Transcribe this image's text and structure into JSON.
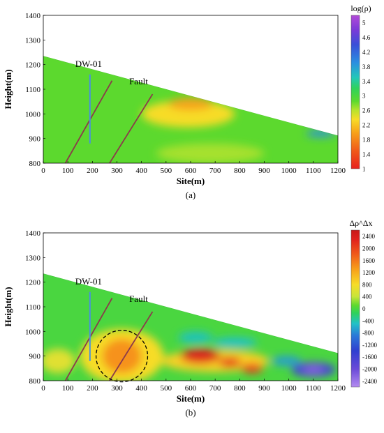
{
  "chart_data": [
    {
      "type": "heatmap",
      "panel_label": "(a)",
      "xlabel": "Site(m)",
      "ylabel": "Height(m)",
      "xlim": [
        0,
        1200
      ],
      "ylim": [
        800,
        1400
      ],
      "x_ticks": [
        0,
        100,
        200,
        300,
        400,
        500,
        600,
        700,
        800,
        900,
        1000,
        1100,
        1200
      ],
      "y_ticks": [
        800,
        900,
        1000,
        1100,
        1200,
        1300,
        1400
      ],
      "colorbar": {
        "title": "log(ρ)",
        "ticks": [
          "5",
          "4.6",
          "4.2",
          "3.8",
          "3.4",
          "3",
          "2.6",
          "2.2",
          "1.8",
          "1.4",
          "1"
        ],
        "range": [
          1,
          5.2
        ],
        "stops": [
          {
            "v": 1.0,
            "c": "#e8201c"
          },
          {
            "v": 1.5,
            "c": "#f05a1a"
          },
          {
            "v": 2.0,
            "c": "#f7a31a"
          },
          {
            "v": 2.35,
            "c": "#f7dc28"
          },
          {
            "v": 2.6,
            "c": "#b8e32d"
          },
          {
            "v": 2.85,
            "c": "#5cd92e"
          },
          {
            "v": 3.2,
            "c": "#2fd25b"
          },
          {
            "v": 3.5,
            "c": "#22c7b9"
          },
          {
            "v": 3.9,
            "c": "#2a8fe0"
          },
          {
            "v": 4.4,
            "c": "#3a4fd8"
          },
          {
            "v": 4.8,
            "c": "#7a3ad8"
          },
          {
            "v": 5.2,
            "c": "#b24ad8"
          }
        ]
      },
      "surface": [
        [
          0,
          1235
        ],
        [
          1200,
          912
        ]
      ],
      "background_value": 2.85,
      "anomalies": [
        {
          "x": 590,
          "y": 1000,
          "rx": 190,
          "ry": 55,
          "v": 2.35
        },
        {
          "x": 600,
          "y": 1040,
          "rx": 90,
          "ry": 25,
          "v": 2.0
        },
        {
          "x": 1130,
          "y": 920,
          "rx": 60,
          "ry": 14,
          "v": 3.9
        },
        {
          "x": 680,
          "y": 840,
          "rx": 220,
          "ry": 40,
          "v": 2.65
        }
      ],
      "annotations": [
        {
          "text": "DW-01",
          "x": 130,
          "y": 1190
        },
        {
          "text": "Fault",
          "x": 350,
          "y": 1120
        }
      ],
      "borehole": {
        "x": 190,
        "y_top": 1160,
        "y_bottom": 880,
        "color": "#4a8fe0"
      },
      "fault_lines": [
        {
          "x1": 90,
          "y1": 800,
          "x2": 280,
          "y2": 1135
        },
        {
          "x1": 270,
          "y1": 800,
          "x2": 445,
          "y2": 1080
        }
      ]
    },
    {
      "type": "heatmap",
      "panel_label": "(b)",
      "xlabel": "Site(m)",
      "ylabel": "Height(m)",
      "xlim": [
        0,
        1200
      ],
      "ylim": [
        800,
        1400
      ],
      "x_ticks": [
        0,
        100,
        200,
        300,
        400,
        500,
        600,
        700,
        800,
        900,
        1000,
        1100,
        1200
      ],
      "y_ticks": [
        800,
        900,
        1000,
        1100,
        1200,
        1300,
        1400
      ],
      "colorbar": {
        "title": "Δρ^Δx",
        "ticks": [
          "2400",
          "2000",
          "1600",
          "1200",
          "800",
          "400",
          "0",
          "-400",
          "-800",
          "-1200",
          "-1600",
          "-2000",
          "-2400"
        ],
        "range": [
          -2600,
          2600
        ],
        "stops": [
          {
            "v": -2600,
            "c": "#b48cf0"
          },
          {
            "v": -2000,
            "c": "#6a4ad8"
          },
          {
            "v": -1400,
            "c": "#2f3fd0"
          },
          {
            "v": -900,
            "c": "#2a78d8"
          },
          {
            "v": -500,
            "c": "#22c1c8"
          },
          {
            "v": -150,
            "c": "#2fd25b"
          },
          {
            "v": 100,
            "c": "#5cd92e"
          },
          {
            "v": 400,
            "c": "#c8e43a"
          },
          {
            "v": 800,
            "c": "#f7dc28"
          },
          {
            "v": 1300,
            "c": "#f7a01a"
          },
          {
            "v": 1800,
            "c": "#f05a1a"
          },
          {
            "v": 2300,
            "c": "#e0201c"
          },
          {
            "v": 2600,
            "c": "#c81818"
          }
        ]
      },
      "surface": [
        [
          0,
          1235
        ],
        [
          1200,
          912
        ]
      ],
      "background_value": 0,
      "anomalies": [
        {
          "x": 320,
          "y": 900,
          "rx": 170,
          "ry": 110,
          "v": 800
        },
        {
          "x": 320,
          "y": 900,
          "rx": 80,
          "ry": 70,
          "v": 1400
        },
        {
          "x": 60,
          "y": 880,
          "rx": 70,
          "ry": 50,
          "v": 600
        },
        {
          "x": 700,
          "y": 880,
          "rx": 220,
          "ry": 45,
          "v": 900
        },
        {
          "x": 640,
          "y": 900,
          "rx": 80,
          "ry": 30,
          "v": 2300
        },
        {
          "x": 760,
          "y": 875,
          "rx": 45,
          "ry": 20,
          "v": 2100
        },
        {
          "x": 850,
          "y": 850,
          "rx": 45,
          "ry": 20,
          "v": 2000
        },
        {
          "x": 620,
          "y": 975,
          "rx": 70,
          "ry": 25,
          "v": -450
        },
        {
          "x": 1100,
          "y": 845,
          "rx": 90,
          "ry": 30,
          "v": -1600
        },
        {
          "x": 1100,
          "y": 845,
          "rx": 45,
          "ry": 18,
          "v": -2200
        },
        {
          "x": 990,
          "y": 880,
          "rx": 60,
          "ry": 20,
          "v": -700
        },
        {
          "x": 780,
          "y": 955,
          "rx": 90,
          "ry": 20,
          "v": -500
        }
      ],
      "annotations": [
        {
          "text": "DW-01",
          "x": 130,
          "y": 1190
        },
        {
          "text": "Fault",
          "x": 350,
          "y": 1120
        }
      ],
      "borehole": {
        "x": 190,
        "y_top": 1160,
        "y_bottom": 880,
        "color": "#4a8fe0"
      },
      "fault_lines": [
        {
          "x1": 90,
          "y1": 800,
          "x2": 280,
          "y2": 1135
        },
        {
          "x1": 270,
          "y1": 800,
          "x2": 445,
          "y2": 1080
        }
      ],
      "dashed_circle": {
        "x": 320,
        "y": 900,
        "r_x_units": 105
      }
    }
  ]
}
